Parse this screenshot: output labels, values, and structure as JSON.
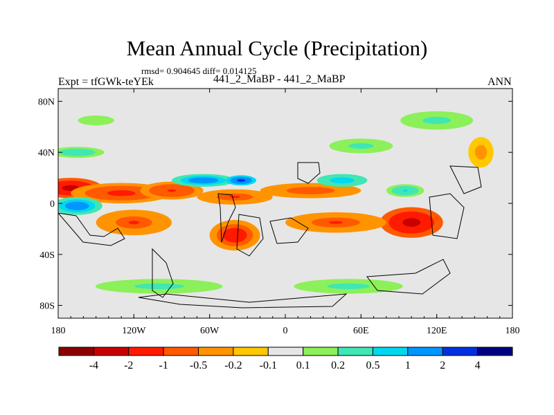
{
  "title": "Mean Annual Cycle (Precipitation)",
  "stats": "rmsd= 0.904645 diff= 0.014125",
  "expt": "Expt = tfGWk-teYEk",
  "center_label": "441_2_MaBP - 441_2_MaBP",
  "season": "ANN",
  "chart_data": {
    "type": "heatmap",
    "title": "Mean Annual Cycle (Precipitation)",
    "subtitle": "441_2_MaBP - 441_2_MaBP",
    "xlabel": "",
    "ylabel": "",
    "xlim": [
      -180,
      180
    ],
    "ylim": [
      -90,
      90
    ],
    "x_ticks": [
      -180,
      -120,
      -60,
      0,
      60,
      120,
      180
    ],
    "x_tick_labels": [
      "180",
      "120W",
      "60W",
      "0",
      "60E",
      "120E",
      "180"
    ],
    "y_ticks": [
      80,
      40,
      0,
      -40,
      -80
    ],
    "y_tick_labels": [
      "80N",
      "40N",
      "0",
      "40S",
      "80S"
    ],
    "colorbar_levels": [
      "-4",
      "-2",
      "-1",
      "-0.5",
      "-0.2",
      "-0.1",
      "0.1",
      "0.2",
      "0.5",
      "1",
      "2",
      "4"
    ],
    "colorbar_colors": [
      "#8b0000",
      "#c80000",
      "#ff1a00",
      "#ff5a00",
      "#ff9400",
      "#ffc800",
      "#e6e6e6",
      "#8cf05a",
      "#40e6b4",
      "#00d8f0",
      "#0096ff",
      "#0030e0",
      "#000080"
    ],
    "features": [
      {
        "lon": -170,
        "lat": 12,
        "rx": 25,
        "ry": 8,
        "v": -2.5
      },
      {
        "lon": -130,
        "lat": 8,
        "rx": 40,
        "ry": 8,
        "v": -1.5
      },
      {
        "lon": -90,
        "lat": 10,
        "rx": 25,
        "ry": 7,
        "v": -1.2
      },
      {
        "lon": -40,
        "lat": 5,
        "rx": 30,
        "ry": 6,
        "v": -1.0
      },
      {
        "lon": 20,
        "lat": 10,
        "rx": 40,
        "ry": 6,
        "v": -0.8
      },
      {
        "lon": 100,
        "lat": -15,
        "rx": 25,
        "ry": 12,
        "v": -2.5
      },
      {
        "lon": 40,
        "lat": -15,
        "rx": 40,
        "ry": 8,
        "v": -1.0
      },
      {
        "lon": -120,
        "lat": -15,
        "rx": 30,
        "ry": 10,
        "v": -1.0
      },
      {
        "lon": -40,
        "lat": -25,
        "rx": 20,
        "ry": 12,
        "v": -1.8
      },
      {
        "lon": -165,
        "lat": -2,
        "rx": 20,
        "ry": 7,
        "v": 2.0
      },
      {
        "lon": -65,
        "lat": 18,
        "rx": 25,
        "ry": 5,
        "v": 2.0
      },
      {
        "lon": -35,
        "lat": 18,
        "rx": 12,
        "ry": 4,
        "v": 3.0
      },
      {
        "lon": 45,
        "lat": 18,
        "rx": 20,
        "ry": 5,
        "v": 1.0
      },
      {
        "lon": 95,
        "lat": 10,
        "rx": 15,
        "ry": 5,
        "v": 0.6
      },
      {
        "lon": -165,
        "lat": 40,
        "rx": 30,
        "ry": 6,
        "v": 0.4
      },
      {
        "lon": 155,
        "lat": 40,
        "rx": 10,
        "ry": 12,
        "v": -0.4
      },
      {
        "lon": 60,
        "lat": 45,
        "rx": 35,
        "ry": 8,
        "v": 0.25
      },
      {
        "lon": -100,
        "lat": -65,
        "rx": 70,
        "ry": 8,
        "v": 0.25
      },
      {
        "lon": 50,
        "lat": -65,
        "rx": 60,
        "ry": 8,
        "v": 0.25
      },
      {
        "lon": -150,
        "lat": 65,
        "rx": 30,
        "ry": 8,
        "v": 0.2
      },
      {
        "lon": 120,
        "lat": 65,
        "rx": 40,
        "ry": 10,
        "v": 0.25
      }
    ]
  }
}
